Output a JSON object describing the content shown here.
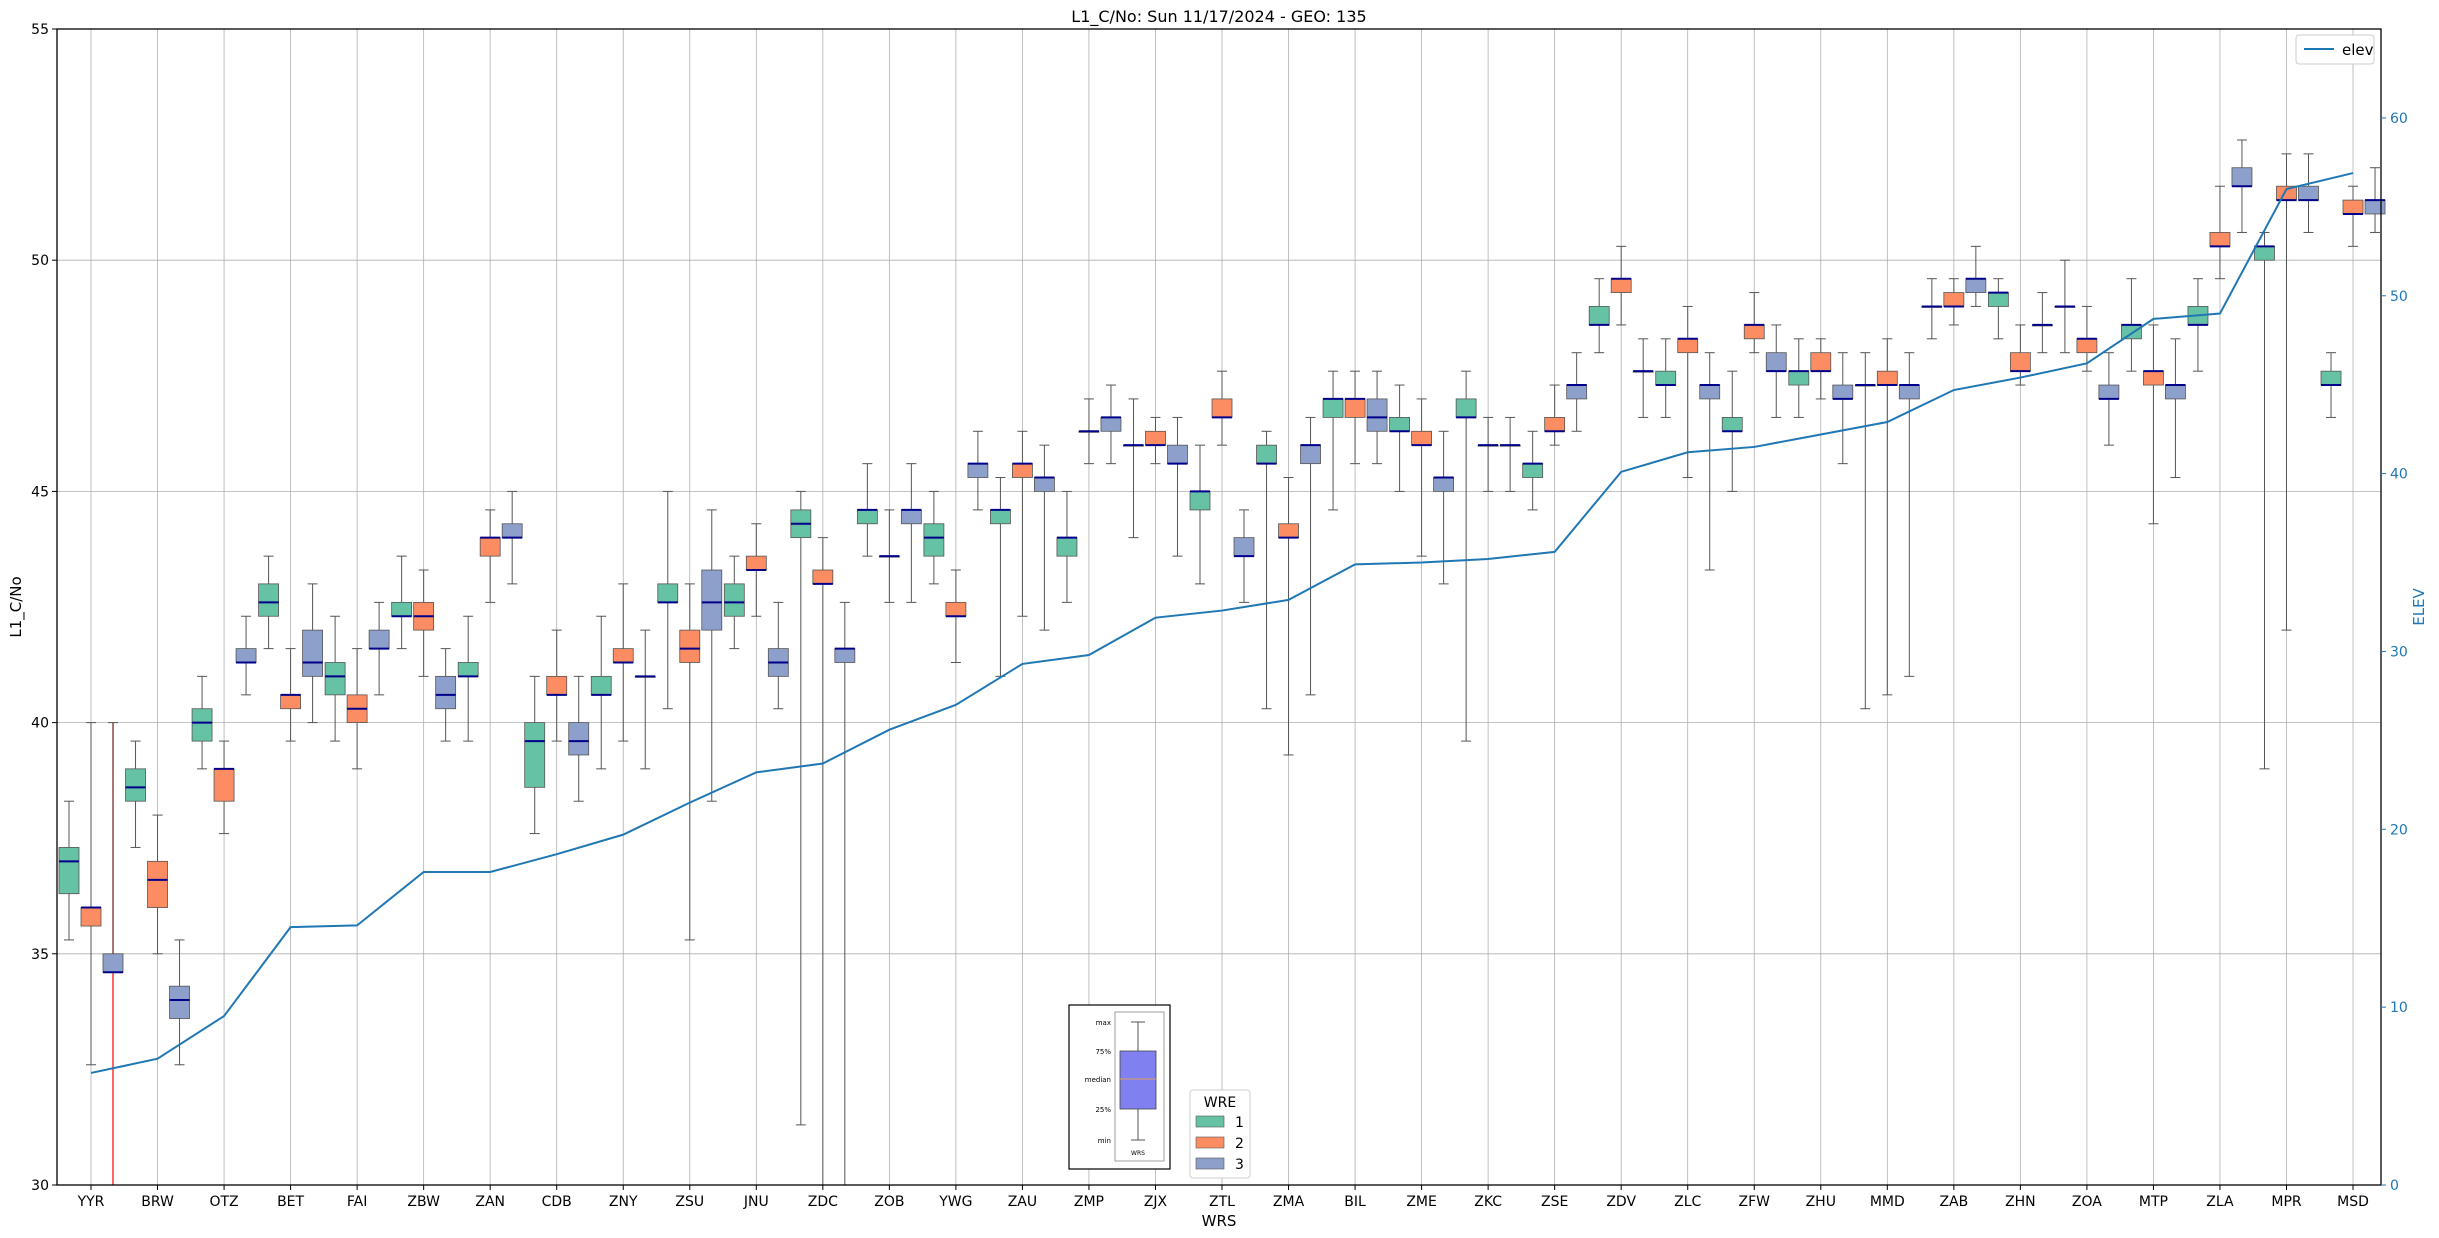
{
  "chart_data": {
    "type": "box",
    "title": "L1_C/No: Sun 11/17/2024 - GEO: 135",
    "xlabel": "WRS",
    "ylabel": "L1_C/No",
    "y2label": "ELEV",
    "ylim": [
      30,
      55
    ],
    "y2lim": [
      0,
      65
    ],
    "yticks": [
      "30",
      "35",
      "40",
      "45",
      "50",
      "55"
    ],
    "y2ticks": [
      "0",
      "10",
      "20",
      "30",
      "40",
      "50",
      "60"
    ],
    "grid": true,
    "categories": [
      "YYR",
      "BRW",
      "OTZ",
      "BET",
      "FAI",
      "ZBW",
      "ZAN",
      "CDB",
      "ZNY",
      "ZSU",
      "JNU",
      "ZDC",
      "ZOB",
      "YWG",
      "ZAU",
      "ZMP",
      "ZJX",
      "ZTL",
      "ZMA",
      "BIL",
      "ZME",
      "ZKC",
      "ZSE",
      "ZDV",
      "ZLC",
      "ZFW",
      "ZHU",
      "MMD",
      "ZAB",
      "ZHN",
      "ZOA",
      "MTP",
      "ZLA",
      "MPR",
      "MSD"
    ],
    "elev": [
      6.3,
      7.1,
      9.5,
      14.5,
      14.6,
      17.6,
      17.6,
      18.6,
      19.7,
      21.5,
      23.2,
      23.7,
      25.6,
      27.0,
      29.3,
      29.8,
      31.9,
      32.3,
      32.9,
      34.9,
      35.0,
      35.2,
      35.6,
      40.1,
      41.2,
      41.5,
      42.2,
      42.9,
      44.7,
      45.4,
      46.2,
      48.7,
      49.0,
      56.0,
      56.9
    ],
    "legend_elev": {
      "label": "elev",
      "loc": "upper right"
    },
    "legend_wre": {
      "title": "WRE",
      "loc": "lower center",
      "entries": [
        {
          "label": "1",
          "color": "#66c2a5"
        },
        {
          "label": "2",
          "color": "#fc8d62"
        },
        {
          "label": "3",
          "color": "#8da0cb"
        }
      ]
    },
    "key_labels": {
      "max": "max",
      "q3": "75%",
      "median": "median",
      "q1": "25%",
      "min": "min",
      "x": "WRS"
    },
    "series": [
      {
        "name": "1",
        "color": "#66c2a5",
        "boxes": [
          [
            0,
            35.3,
            36.3,
            37.0,
            37.3,
            38.3
          ],
          [
            1,
            37.3,
            38.3,
            38.6,
            39.0,
            39.6
          ],
          [
            2,
            39.0,
            39.6,
            40.0,
            40.3,
            41.0
          ],
          [
            3,
            41.6,
            42.3,
            42.6,
            43.0,
            43.6
          ],
          [
            4,
            39.6,
            40.6,
            41.0,
            41.3,
            42.3
          ],
          [
            5,
            41.6,
            42.3,
            42.3,
            42.6,
            43.6
          ],
          [
            6,
            39.6,
            41.0,
            41.0,
            41.3,
            42.3
          ],
          [
            7,
            37.6,
            38.6,
            39.6,
            40.0,
            41.0
          ],
          [
            8,
            39.0,
            40.6,
            40.6,
            41.0,
            42.3
          ],
          [
            9,
            40.3,
            42.6,
            42.6,
            43.0,
            45.0
          ],
          [
            10,
            41.6,
            42.3,
            42.6,
            43.0,
            43.6
          ],
          [
            11,
            31.3,
            44.0,
            44.3,
            44.6,
            45.0
          ],
          [
            12,
            43.6,
            44.3,
            44.6,
            44.6,
            45.6
          ],
          [
            13,
            43.0,
            43.6,
            44.0,
            44.3,
            45.0
          ],
          [
            14,
            41.0,
            44.3,
            44.6,
            44.6,
            45.3
          ],
          [
            15,
            42.6,
            43.6,
            44.0,
            44.0,
            45.0
          ],
          [
            16,
            44.0,
            46.0,
            46.0,
            46.0,
            47.0
          ],
          [
            17,
            43.0,
            44.6,
            45.0,
            45.0,
            46.0
          ],
          [
            18,
            40.3,
            45.6,
            45.6,
            46.0,
            46.3
          ],
          [
            19,
            44.6,
            46.6,
            47.0,
            47.0,
            47.6
          ],
          [
            20,
            45.0,
            46.3,
            46.3,
            46.6,
            47.3
          ],
          [
            21,
            39.6,
            46.6,
            46.6,
            47.0,
            47.6
          ],
          [
            22,
            44.6,
            45.3,
            45.6,
            45.6,
            46.3
          ],
          [
            23,
            48.0,
            48.6,
            48.6,
            49.0,
            49.6
          ],
          [
            24,
            46.6,
            47.3,
            47.3,
            47.6,
            48.3
          ],
          [
            25,
            45.0,
            46.3,
            46.3,
            46.6,
            47.6
          ],
          [
            26,
            46.6,
            47.3,
            47.6,
            47.6,
            48.3
          ],
          [
            27,
            40.3,
            47.3,
            47.3,
            47.3,
            48.0
          ],
          [
            28,
            48.3,
            49.0,
            49.0,
            49.0,
            49.6
          ],
          [
            29,
            48.3,
            49.0,
            49.3,
            49.3,
            49.6
          ],
          [
            30,
            48.0,
            49.0,
            49.0,
            49.0,
            50.0
          ],
          [
            31,
            47.6,
            48.3,
            48.6,
            48.6,
            49.6
          ],
          [
            32,
            47.6,
            48.6,
            48.6,
            49.0,
            49.6
          ],
          [
            33,
            39.0,
            50.0,
            50.3,
            50.3,
            50.6
          ],
          [
            34,
            46.6,
            47.3,
            47.3,
            47.6,
            48.0
          ]
        ]
      },
      {
        "name": "2",
        "color": "#fc8d62",
        "boxes": [
          [
            0,
            32.6,
            35.6,
            36.0,
            36.0,
            40.0
          ],
          [
            1,
            35.0,
            36.0,
            36.6,
            37.0,
            38.0
          ],
          [
            2,
            37.6,
            38.3,
            39.0,
            39.0,
            39.6
          ],
          [
            3,
            39.6,
            40.3,
            40.6,
            40.6,
            41.6
          ],
          [
            4,
            39.0,
            40.0,
            40.3,
            40.6,
            41.6
          ],
          [
            5,
            41.0,
            42.0,
            42.3,
            42.6,
            43.3
          ],
          [
            6,
            42.6,
            43.6,
            44.0,
            44.0,
            44.6
          ],
          [
            7,
            39.6,
            40.6,
            40.6,
            41.0,
            42.0
          ],
          [
            8,
            39.6,
            41.3,
            41.3,
            41.6,
            43.0
          ],
          [
            9,
            35.3,
            41.3,
            41.6,
            42.0,
            43.0
          ],
          [
            10,
            42.3,
            43.3,
            43.3,
            43.6,
            44.3
          ],
          [
            11,
            30.0,
            43.0,
            43.0,
            43.3,
            44.0
          ],
          [
            12,
            42.6,
            43.6,
            43.6,
            43.6,
            44.6
          ],
          [
            13,
            41.3,
            42.3,
            42.3,
            42.6,
            43.3
          ],
          [
            14,
            42.3,
            45.3,
            45.6,
            45.6,
            46.3
          ],
          [
            15,
            45.6,
            46.3,
            46.3,
            46.3,
            47.0
          ],
          [
            16,
            45.6,
            46.0,
            46.0,
            46.3,
            46.6
          ],
          [
            17,
            46.0,
            46.6,
            46.6,
            47.0,
            47.6
          ],
          [
            18,
            39.3,
            44.0,
            44.0,
            44.3,
            45.3
          ],
          [
            19,
            45.6,
            46.6,
            47.0,
            47.0,
            47.6
          ],
          [
            20,
            43.6,
            46.0,
            46.0,
            46.3,
            47.0
          ],
          [
            21,
            45.0,
            46.0,
            46.0,
            46.0,
            46.6
          ],
          [
            22,
            46.0,
            46.3,
            46.3,
            46.6,
            47.3
          ],
          [
            23,
            48.6,
            49.3,
            49.6,
            49.6,
            50.3
          ],
          [
            24,
            45.3,
            48.0,
            48.3,
            48.3,
            49.0
          ],
          [
            25,
            48.0,
            48.3,
            48.6,
            48.6,
            49.3
          ],
          [
            26,
            47.0,
            47.6,
            47.6,
            48.0,
            48.3
          ],
          [
            27,
            40.6,
            47.3,
            47.3,
            47.6,
            48.3
          ],
          [
            28,
            48.6,
            49.0,
            49.0,
            49.3,
            49.6
          ],
          [
            29,
            47.3,
            47.6,
            47.6,
            48.0,
            48.6
          ],
          [
            30,
            47.6,
            48.0,
            48.3,
            48.3,
            49.0
          ],
          [
            31,
            44.3,
            47.3,
            47.6,
            47.6,
            48.6
          ],
          [
            32,
            49.6,
            50.3,
            50.3,
            50.6,
            51.6
          ],
          [
            33,
            42.0,
            51.3,
            51.3,
            51.6,
            52.3
          ],
          [
            34,
            50.3,
            51.0,
            51.0,
            51.3,
            51.6
          ]
        ]
      },
      {
        "name": "3",
        "color": "#8da0cb",
        "boxes": [
          [
            0,
            34.6,
            34.6,
            34.6,
            35.0,
            40.0
          ],
          [
            1,
            32.6,
            33.6,
            34.0,
            34.3,
            35.3
          ],
          [
            2,
            40.6,
            41.3,
            41.3,
            41.6,
            42.3
          ],
          [
            3,
            40.0,
            41.0,
            41.3,
            42.0,
            43.0
          ],
          [
            4,
            40.6,
            41.6,
            41.6,
            42.0,
            42.6
          ],
          [
            5,
            39.6,
            40.3,
            40.6,
            41.0,
            41.6
          ],
          [
            6,
            43.0,
            44.0,
            44.0,
            44.3,
            45.0
          ],
          [
            7,
            38.3,
            39.3,
            39.6,
            40.0,
            41.0
          ],
          [
            8,
            39.0,
            41.0,
            41.0,
            41.0,
            42.0
          ],
          [
            9,
            38.3,
            42.0,
            42.6,
            43.3,
            44.6
          ],
          [
            10,
            40.3,
            41.0,
            41.3,
            41.6,
            42.6
          ],
          [
            11,
            30.0,
            41.3,
            41.6,
            41.6,
            42.6
          ],
          [
            12,
            42.6,
            44.3,
            44.6,
            44.6,
            45.6
          ],
          [
            13,
            44.6,
            45.3,
            45.6,
            45.6,
            46.3
          ],
          [
            14,
            42.0,
            45.0,
            45.3,
            45.3,
            46.0
          ],
          [
            15,
            45.6,
            46.3,
            46.6,
            46.6,
            47.3
          ],
          [
            16,
            43.6,
            45.6,
            45.6,
            46.0,
            46.6
          ],
          [
            17,
            42.6,
            43.6,
            43.6,
            44.0,
            44.6
          ],
          [
            18,
            40.6,
            45.6,
            46.0,
            46.0,
            46.6
          ],
          [
            19,
            45.6,
            46.3,
            46.6,
            47.0,
            47.6
          ],
          [
            20,
            43.0,
            45.0,
            45.3,
            45.3,
            46.3
          ],
          [
            21,
            45.0,
            46.0,
            46.0,
            46.0,
            46.6
          ],
          [
            22,
            46.3,
            47.0,
            47.3,
            47.3,
            48.0
          ],
          [
            23,
            46.6,
            47.6,
            47.6,
            47.6,
            48.3
          ],
          [
            24,
            43.3,
            47.0,
            47.3,
            47.3,
            48.0
          ],
          [
            25,
            46.6,
            47.6,
            47.6,
            48.0,
            48.6
          ],
          [
            26,
            45.6,
            47.0,
            47.0,
            47.3,
            48.0
          ],
          [
            27,
            41.0,
            47.0,
            47.3,
            47.3,
            48.0
          ],
          [
            28,
            49.0,
            49.3,
            49.6,
            49.6,
            50.3
          ],
          [
            29,
            48.0,
            48.6,
            48.6,
            48.6,
            49.3
          ],
          [
            30,
            46.0,
            47.0,
            47.0,
            47.3,
            48.0
          ],
          [
            31,
            45.3,
            47.0,
            47.3,
            47.3,
            48.3
          ],
          [
            32,
            50.6,
            51.6,
            51.6,
            52.0,
            52.6
          ],
          [
            33,
            50.6,
            51.3,
            51.3,
            51.6,
            52.3
          ],
          [
            34,
            50.6,
            51.0,
            51.3,
            51.3,
            52.0
          ]
        ]
      }
    ],
    "red_line_at": 0,
    "red_line_color": "#ff3333",
    "elev_color": "#1f77b4",
    "median_color": "#00008b"
  }
}
